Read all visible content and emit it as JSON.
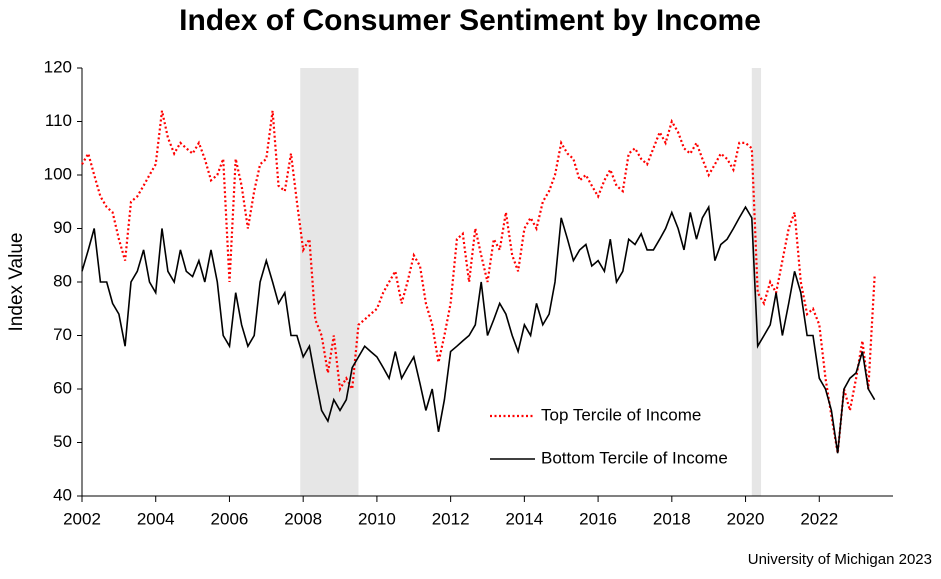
{
  "chart_data": {
    "type": "line",
    "title": "Index of Consumer Sentiment by Income",
    "y_label": "Index Value",
    "source": "University of Michigan 2023",
    "x": [
      2002,
      2002.17,
      2002.33,
      2002.5,
      2002.67,
      2002.83,
      2003,
      2003.17,
      2003.33,
      2003.5,
      2003.67,
      2003.83,
      2004,
      2004.17,
      2004.33,
      2004.5,
      2004.67,
      2004.83,
      2005,
      2005.17,
      2005.33,
      2005.5,
      2005.67,
      2005.83,
      2006,
      2006.17,
      2006.33,
      2006.5,
      2006.67,
      2006.83,
      2007,
      2007.17,
      2007.33,
      2007.5,
      2007.67,
      2007.83,
      2008,
      2008.17,
      2008.33,
      2008.5,
      2008.67,
      2008.83,
      2009,
      2009.17,
      2009.33,
      2009.5,
      2009.67,
      2009.83,
      2010,
      2010.17,
      2010.33,
      2010.5,
      2010.67,
      2010.83,
      2011,
      2011.17,
      2011.33,
      2011.5,
      2011.67,
      2011.83,
      2012,
      2012.17,
      2012.33,
      2012.5,
      2012.67,
      2012.83,
      2013,
      2013.17,
      2013.33,
      2013.5,
      2013.67,
      2013.83,
      2014,
      2014.17,
      2014.33,
      2014.5,
      2014.67,
      2014.83,
      2015,
      2015.17,
      2015.33,
      2015.5,
      2015.67,
      2015.83,
      2016,
      2016.17,
      2016.33,
      2016.5,
      2016.67,
      2016.83,
      2017,
      2017.17,
      2017.33,
      2017.5,
      2017.67,
      2017.83,
      2018,
      2018.17,
      2018.33,
      2018.5,
      2018.67,
      2018.83,
      2019,
      2019.17,
      2019.33,
      2019.5,
      2019.67,
      2019.83,
      2020,
      2020.17,
      2020.33,
      2020.5,
      2020.67,
      2020.83,
      2021,
      2021.17,
      2021.33,
      2021.5,
      2021.67,
      2021.83,
      2022,
      2022.17,
      2022.33,
      2022.5,
      2022.67,
      2022.83,
      2023,
      2023.17,
      2023.33,
      2023.5
    ],
    "series": [
      {
        "name": "Top Tercile of Income",
        "color": "#ff0000",
        "line_style": "dotted",
        "values": [
          102,
          104,
          100,
          96,
          94,
          93,
          88,
          84,
          95,
          96,
          98,
          100,
          102,
          112,
          107,
          104,
          106,
          105,
          104,
          106,
          103,
          99,
          100,
          103,
          80,
          103,
          98,
          90,
          97,
          102,
          103,
          112,
          98,
          97,
          104,
          95,
          86,
          88,
          73,
          70,
          63,
          70,
          60,
          62,
          60,
          72,
          73,
          74,
          75,
          78,
          80,
          82,
          76,
          80,
          85,
          83,
          76,
          72,
          65,
          70,
          76,
          88,
          89,
          80,
          90,
          85,
          80,
          88,
          86,
          93,
          85,
          82,
          90,
          92,
          90,
          95,
          97,
          100,
          106,
          104,
          103,
          99,
          100,
          98,
          96,
          99,
          101,
          98,
          97,
          104,
          105,
          103,
          102,
          105,
          108,
          106,
          110,
          108,
          105,
          104,
          106,
          103,
          100,
          102,
          104,
          103,
          101,
          106,
          106,
          105,
          78,
          76,
          80,
          78,
          84,
          90,
          93,
          80,
          74,
          75,
          72,
          62,
          55,
          48,
          60,
          56,
          62,
          69,
          60,
          81
        ]
      },
      {
        "name": "Bottom Tercile of Income",
        "color": "#000000",
        "line_style": "solid",
        "values": [
          82,
          86,
          90,
          80,
          80,
          76,
          74,
          68,
          80,
          82,
          86,
          80,
          78,
          90,
          82,
          80,
          86,
          82,
          81,
          84,
          80,
          86,
          80,
          70,
          68,
          78,
          72,
          68,
          70,
          80,
          84,
          80,
          76,
          78,
          70,
          70,
          66,
          68,
          62,
          56,
          54,
          58,
          56,
          58,
          64,
          66,
          68,
          67,
          66,
          64,
          62,
          67,
          62,
          64,
          66,
          61,
          56,
          60,
          52,
          58,
          67,
          68,
          69,
          70,
          72,
          80,
          70,
          73,
          76,
          74,
          70,
          67,
          72,
          70,
          76,
          72,
          74,
          80,
          92,
          88,
          84,
          86,
          87,
          83,
          84,
          82,
          88,
          80,
          82,
          88,
          87,
          89,
          86,
          86,
          88,
          90,
          93,
          90,
          86,
          93,
          88,
          92,
          94,
          84,
          87,
          88,
          90,
          92,
          94,
          92,
          68,
          70,
          72,
          78,
          70,
          76,
          82,
          78,
          70,
          70,
          62,
          60,
          56,
          48,
          60,
          62,
          63,
          67,
          60,
          58
        ]
      }
    ],
    "shaded_periods": [
      [
        2007.92,
        2009.5
      ],
      [
        2020.17,
        2020.42
      ]
    ],
    "shade_color": "#e6e6e6",
    "xlim": [
      2002,
      2024
    ],
    "xticks": [
      2002,
      2004,
      2006,
      2008,
      2010,
      2012,
      2014,
      2016,
      2018,
      2020,
      2022
    ],
    "ylim": [
      40,
      120
    ],
    "yticks": [
      40,
      50,
      60,
      70,
      80,
      90,
      100,
      110,
      120
    ],
    "grid": false
  }
}
